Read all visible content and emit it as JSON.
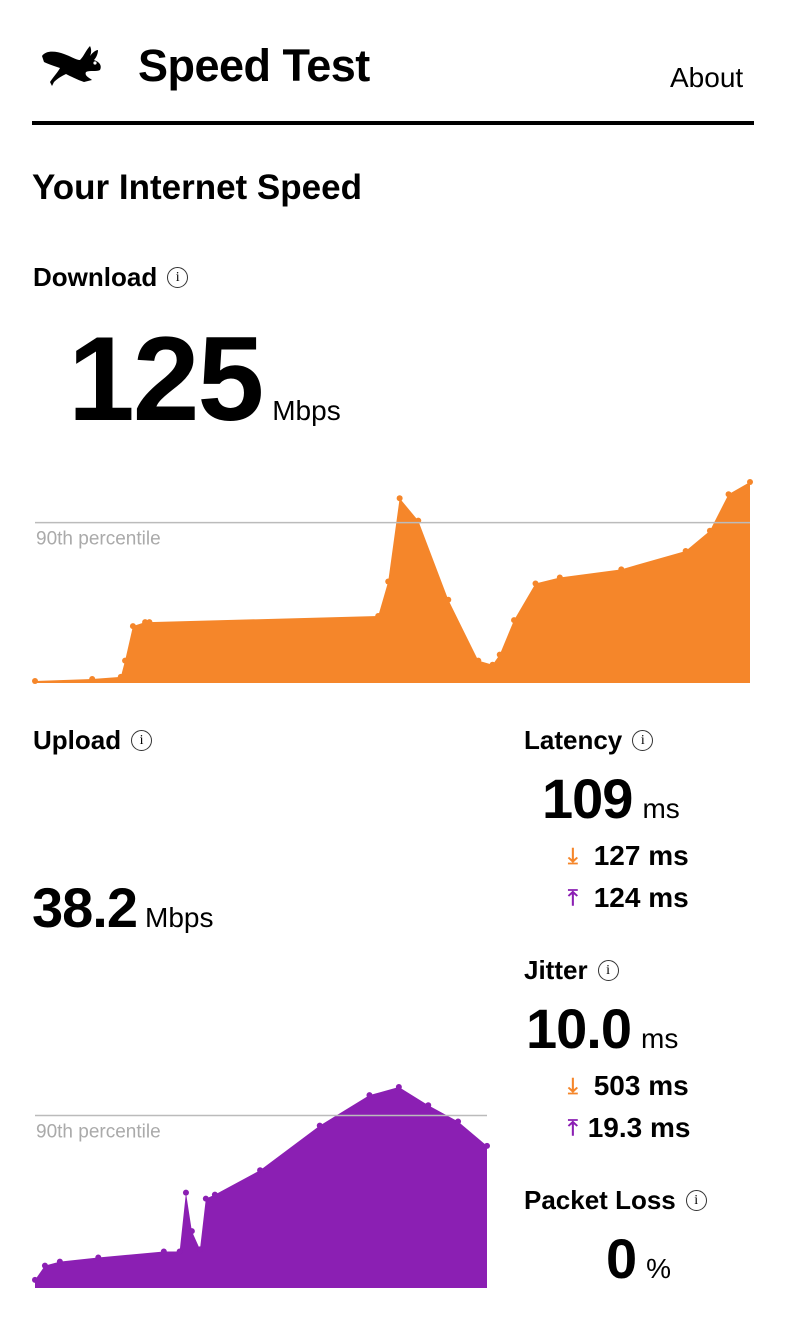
{
  "header": {
    "title": "Speed Test",
    "about_label": "About",
    "logo_icon": "running-rabbit-icon"
  },
  "heading": "Your Internet Speed",
  "download": {
    "label": "Download",
    "value": "125",
    "unit": "Mbps",
    "color": "#f5862a",
    "percentile_label": "90th percentile",
    "percentile_level": 79,
    "series": [
      [
        0,
        1
      ],
      [
        8,
        2
      ],
      [
        12,
        3
      ],
      [
        12.6,
        11
      ],
      [
        13.7,
        28
      ],
      [
        15.4,
        30
      ],
      [
        16,
        30
      ],
      [
        48,
        33
      ],
      [
        49.4,
        50
      ],
      [
        51,
        91
      ],
      [
        53.6,
        80
      ],
      [
        57.8,
        41
      ],
      [
        62,
        11
      ],
      [
        64,
        9
      ],
      [
        65,
        14
      ],
      [
        67,
        31
      ],
      [
        70,
        49
      ],
      [
        73.4,
        52
      ],
      [
        82,
        56
      ],
      [
        91,
        65
      ],
      [
        94.4,
        75
      ],
      [
        97,
        93
      ],
      [
        100,
        99
      ]
    ]
  },
  "upload": {
    "label": "Upload",
    "value": "38.2",
    "unit": "Mbps",
    "color": "#8b1fb3",
    "percentile_label": "90th percentile",
    "percentile_level": 85,
    "series": [
      [
        0,
        4
      ],
      [
        2.2,
        11
      ],
      [
        5.5,
        13
      ],
      [
        14,
        15
      ],
      [
        28.5,
        18
      ],
      [
        32,
        18
      ],
      [
        33.4,
        47
      ],
      [
        34.7,
        28
      ],
      [
        36.5,
        19
      ],
      [
        37.8,
        44
      ],
      [
        39.8,
        46
      ],
      [
        49.8,
        58
      ],
      [
        63,
        80
      ],
      [
        74,
        95
      ],
      [
        80.5,
        99
      ],
      [
        87,
        90
      ],
      [
        93.6,
        82
      ],
      [
        100,
        70
      ]
    ]
  },
  "latency": {
    "label": "Latency",
    "value": "109",
    "unit": "ms",
    "download": "127 ms",
    "upload": "124 ms"
  },
  "jitter": {
    "label": "Jitter",
    "value": "10.0",
    "unit": "ms",
    "download": "503 ms",
    "upload": "19.3 ms"
  },
  "packet_loss": {
    "label": "Packet Loss",
    "value": "0",
    "unit": "%"
  }
}
